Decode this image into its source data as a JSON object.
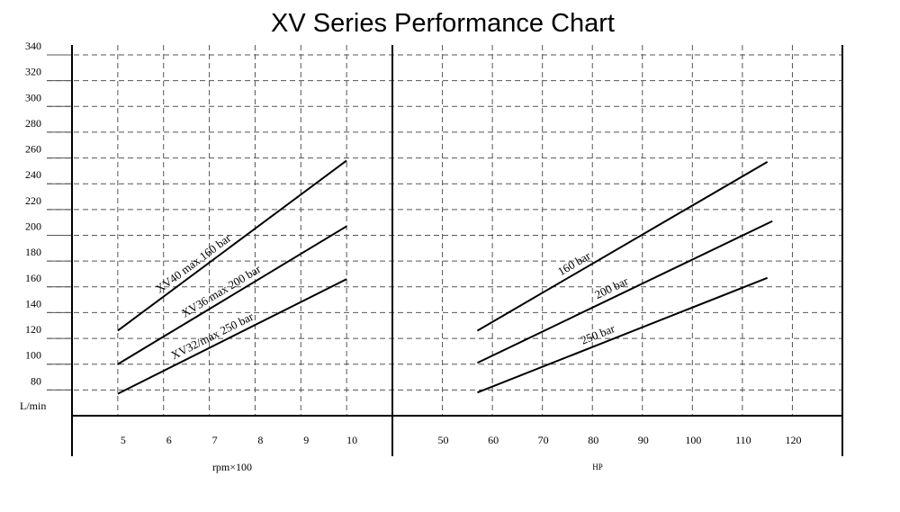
{
  "chart_data": [
    {
      "type": "line",
      "title": "XV Series Performance Chart",
      "ylabel": "L/min",
      "xlabel": "rpm×100",
      "xlim": [
        4,
        11
      ],
      "ylim": [
        60,
        340
      ],
      "yticks": [
        80,
        100,
        120,
        140,
        160,
        180,
        200,
        220,
        240,
        260,
        280,
        300,
        320,
        340
      ],
      "xticks": [
        5,
        6,
        7,
        8,
        9,
        10
      ],
      "series": [
        {
          "name": "XV40 max 160 bar",
          "x": [
            5,
            10
          ],
          "y": [
            126,
            258
          ]
        },
        {
          "name": "XV36 max 200 bar",
          "x": [
            5,
            10
          ],
          "y": [
            100,
            207
          ]
        },
        {
          "name": "XV32/max 250 bar",
          "x": [
            5,
            10
          ],
          "y": [
            77,
            166
          ]
        }
      ]
    },
    {
      "type": "line",
      "xlabel": "HP",
      "xlim": [
        40,
        130
      ],
      "ylim": [
        60,
        340
      ],
      "xticks": [
        50,
        60,
        70,
        80,
        90,
        100,
        110,
        120
      ],
      "series": [
        {
          "name": "160 bar",
          "x": [
            57,
            115
          ],
          "y": [
            126,
            257
          ]
        },
        {
          "name": "200 bar",
          "x": [
            57,
            116
          ],
          "y": [
            101,
            211
          ]
        },
        {
          "name": "250 bar",
          "x": [
            57,
            115
          ],
          "y": [
            78,
            167
          ]
        }
      ]
    }
  ],
  "colors": {
    "line": "#000000",
    "grid": "#555555"
  }
}
